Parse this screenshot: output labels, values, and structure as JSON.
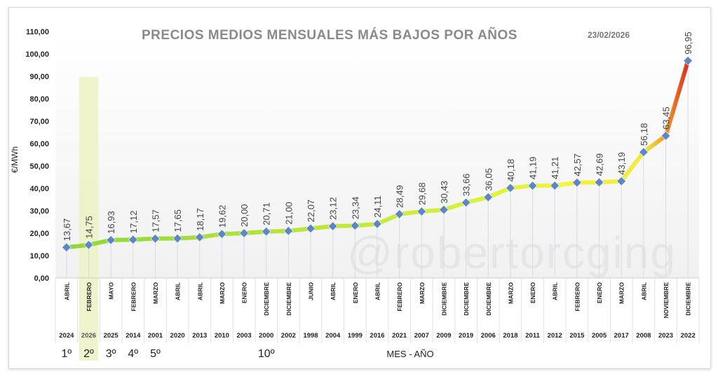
{
  "chart_data": {
    "type": "line",
    "title": "PRECIOS MEDIOS MENSUALES MÁS BAJOS POR AÑOS",
    "date": "23/02/2026",
    "ylabel": "€/MWh",
    "xlabel": "MES - AÑO",
    "watermark": "@robertorcging",
    "ylim": [
      0,
      110
    ],
    "yticks": [
      "0,00",
      "10,00",
      "20,00",
      "30,00",
      "40,00",
      "50,00",
      "60,00",
      "70,00",
      "80,00",
      "90,00",
      "100,00",
      "110,00"
    ],
    "highlight_index": 1,
    "months": [
      "ABRIL",
      "FEBRERO",
      "MAYO",
      "FEBRERO",
      "MARZO",
      "ABRIL",
      "ABRIL",
      "MARZO",
      "ENERO",
      "DICIEMBRE",
      "DICIEMBRE",
      "JUNIO",
      "ABRIL",
      "ENERO",
      "ABRIL",
      "FEBRERO",
      "MARZO",
      "DICIEMBRE",
      "DICIEMBRE",
      "DICIEMBRE",
      "MARZO",
      "ENERO",
      "ABRIL",
      "FEBRERO",
      "ENERO",
      "MARZO",
      "ABRIL",
      "NOVIEMBRE",
      "DICIEMBRE"
    ],
    "years": [
      "2024",
      "2026",
      "2025",
      "2014",
      "2001",
      "2020",
      "2013",
      "2010",
      "2003",
      "2000",
      "2002",
      "1998",
      "2004",
      "1999",
      "2016",
      "2021",
      "2007",
      "2009",
      "2019",
      "2006",
      "2018",
      "2011",
      "2012",
      "2015",
      "2005",
      "2017",
      "2008",
      "2023",
      "2022"
    ],
    "values": [
      13.67,
      14.75,
      16.93,
      17.12,
      17.57,
      17.65,
      18.17,
      19.62,
      20.0,
      20.71,
      21.0,
      22.07,
      23.12,
      23.34,
      24.11,
      28.49,
      29.68,
      30.43,
      33.66,
      36.05,
      40.18,
      41.19,
      41.21,
      42.57,
      42.69,
      43.19,
      56.18,
      63.45,
      96.95
    ],
    "value_labels": [
      "13,67",
      "14,75",
      "16,93",
      "17,12",
      "17,57",
      "17,65",
      "18,17",
      "19,62",
      "20,00",
      "20,71",
      "21,00",
      "22,07",
      "23,12",
      "23,34",
      "24,11",
      "28,49",
      "29,68",
      "30,43",
      "33,66",
      "36,05",
      "40,18",
      "41,19",
      "41,21",
      "42,57",
      "42,69",
      "43,19",
      "56,18",
      "63,45",
      "96,95"
    ],
    "ranks": [
      {
        "index": 0,
        "label": "1º"
      },
      {
        "index": 1,
        "label": "2º"
      },
      {
        "index": 2,
        "label": "3º"
      },
      {
        "index": 3,
        "label": "4º"
      },
      {
        "index": 4,
        "label": "5º"
      },
      {
        "index": 9,
        "label": "10º"
      }
    ],
    "colors": {
      "line_start": "#8fd63a",
      "line_mid": "#f2f53a",
      "line_end": "#d8301c",
      "marker": "#5b87c8",
      "highlight": "#eef3c8"
    }
  }
}
